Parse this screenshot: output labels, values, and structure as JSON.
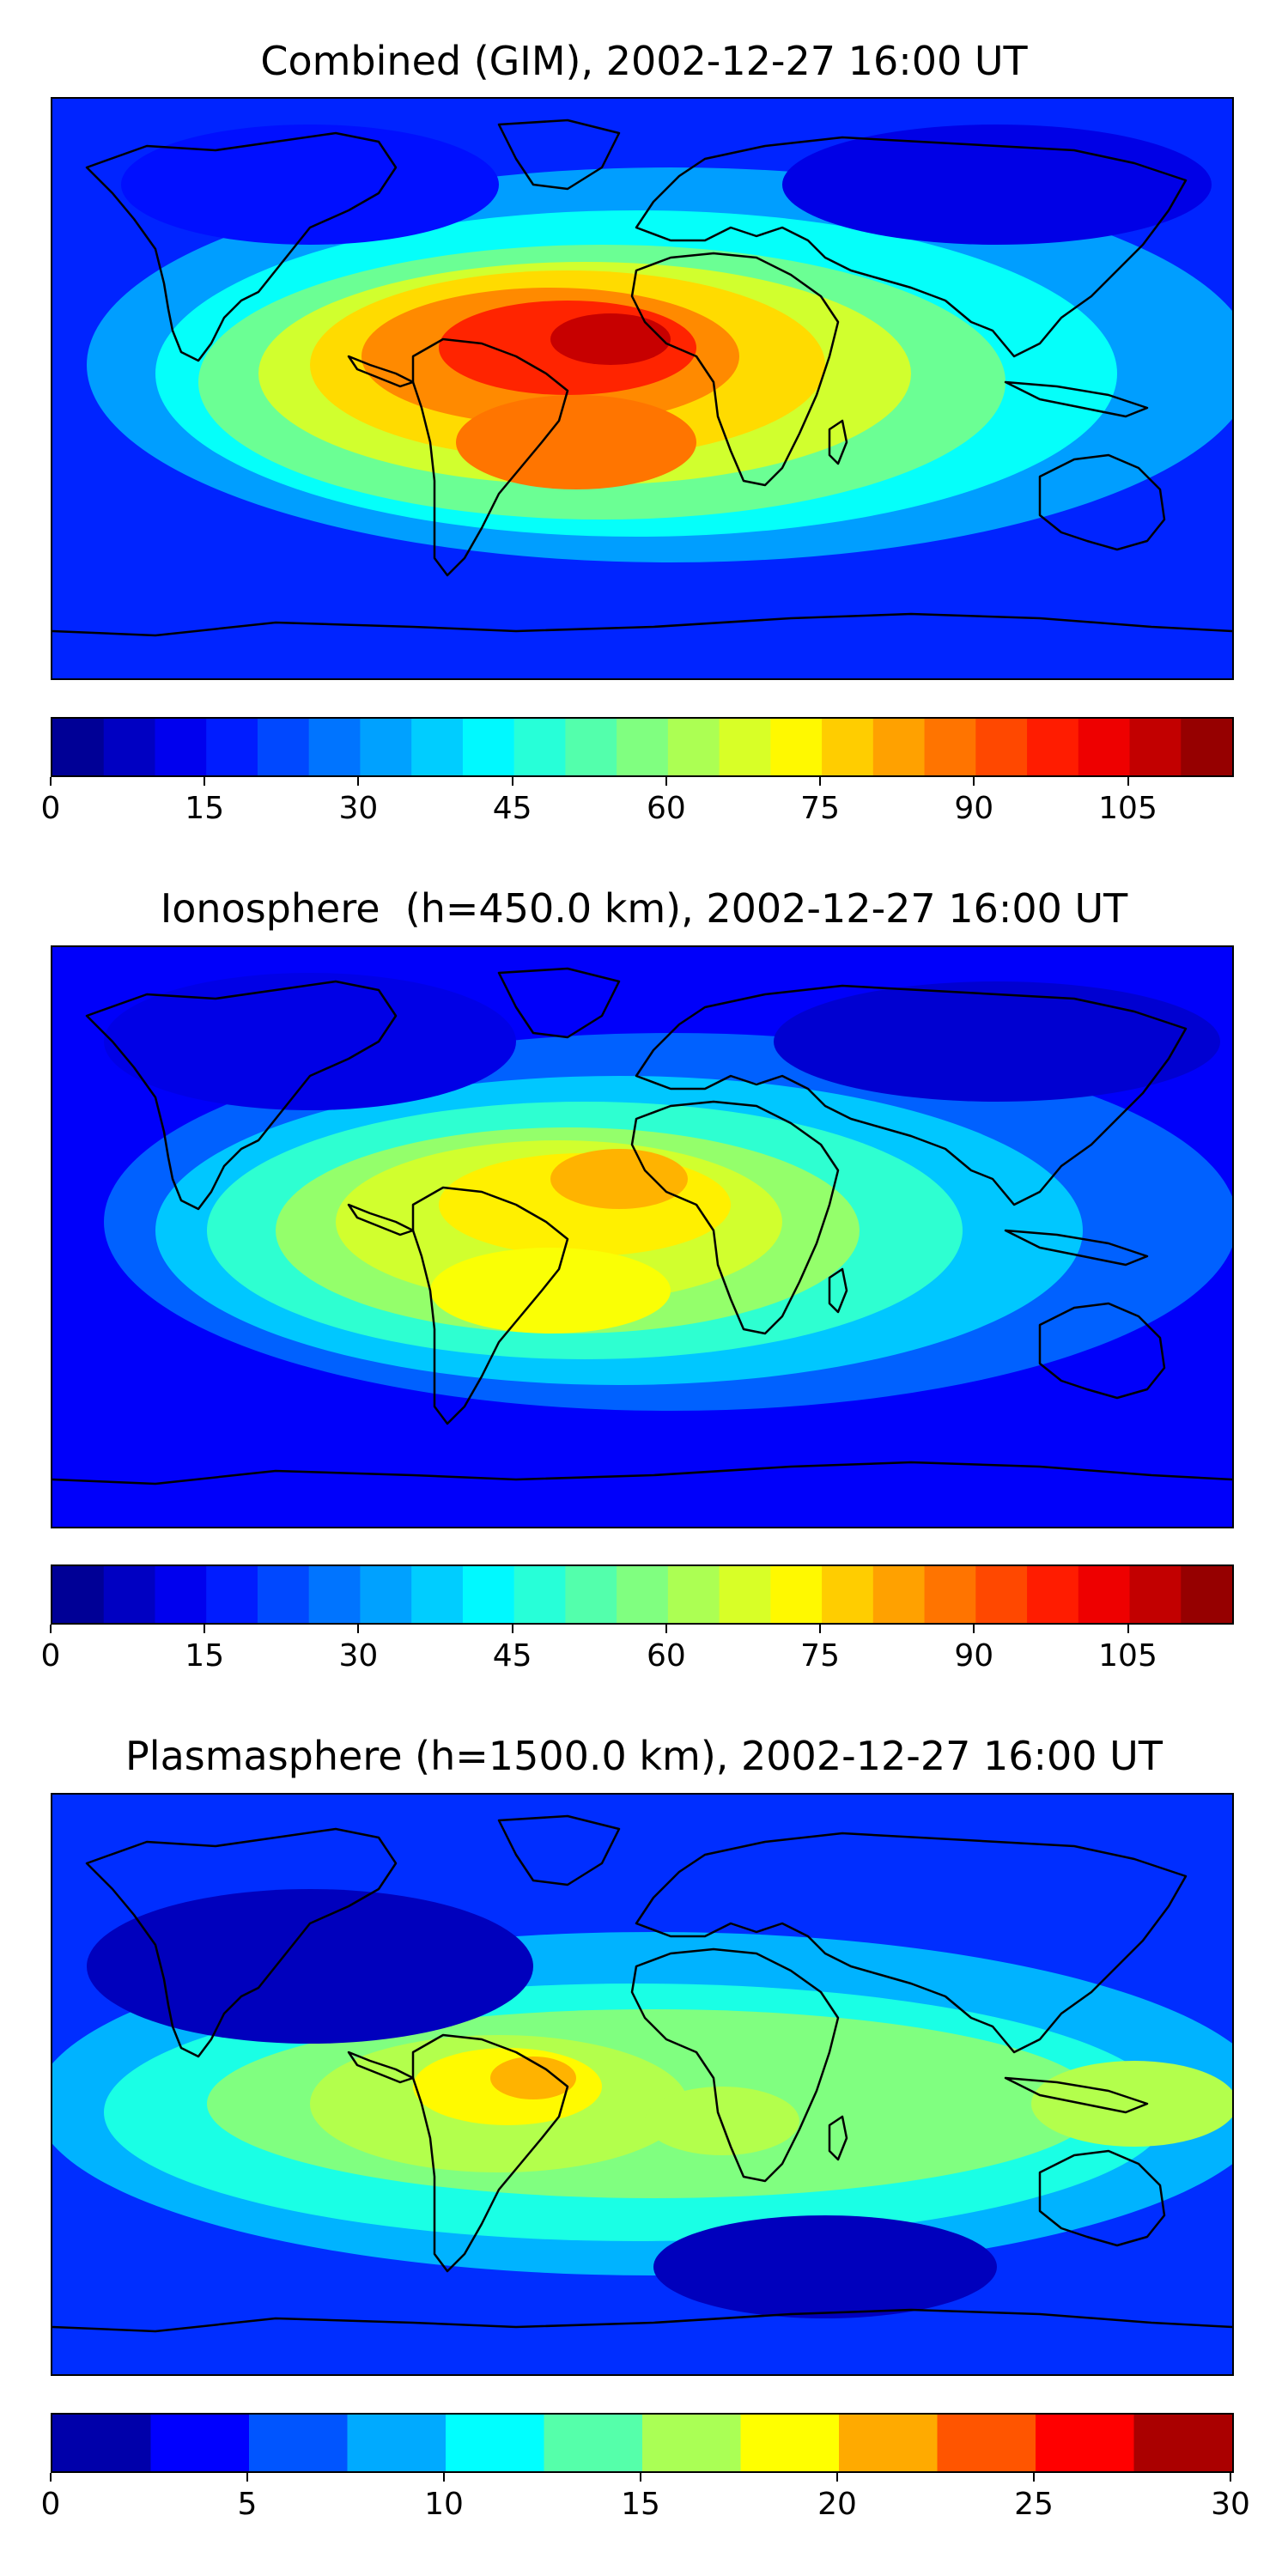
{
  "chart_data": [
    {
      "type": "heatmap",
      "title": "Combined (GIM), 2002-12-27 16:00 UT",
      "colorbar": {
        "levels": [
          0,
          5,
          10,
          15,
          20,
          25,
          30,
          35,
          40,
          45,
          50,
          55,
          60,
          65,
          70,
          75,
          80,
          85,
          90,
          95,
          100,
          105,
          110,
          115
        ],
        "tick_values": [
          0,
          15,
          30,
          45,
          60,
          75,
          90,
          105
        ],
        "tick_labels": [
          "0",
          "15",
          "30",
          "45",
          "60",
          "75",
          "90",
          "105"
        ],
        "range": [
          0,
          115
        ]
      },
      "features": [
        {
          "region": "tropical Atlantic near West Africa",
          "approx_value": 100
        },
        {
          "region": "central South America / South Atlantic",
          "approx_value": 85
        },
        {
          "region": "Pacific / Asian high latitudes",
          "approx_value": 15
        }
      ]
    },
    {
      "type": "heatmap",
      "title": "Ionosphere  (h=450.0 km), 2002-12-27 16:00 UT",
      "colorbar": {
        "levels": [
          0,
          5,
          10,
          15,
          20,
          25,
          30,
          35,
          40,
          45,
          50,
          55,
          60,
          65,
          70,
          75,
          80,
          85,
          90,
          95,
          100,
          105,
          110,
          115
        ],
        "tick_values": [
          0,
          15,
          30,
          45,
          60,
          75,
          90,
          105
        ],
        "tick_labels": [
          "0",
          "15",
          "30",
          "45",
          "60",
          "75",
          "90",
          "105"
        ],
        "range": [
          0,
          115
        ]
      },
      "features": [
        {
          "region": "West Africa / tropical Atlantic",
          "approx_value": 75
        },
        {
          "region": "South America / South Atlantic",
          "approx_value": 65
        },
        {
          "region": "Pacific / Asian high latitudes",
          "approx_value": 10
        }
      ]
    },
    {
      "type": "heatmap",
      "title": "Plasmasphere (h=1500.0 km), 2002-12-27 16:00 UT",
      "colorbar": {
        "levels": [
          0,
          2.5,
          5,
          7.5,
          10,
          12.5,
          15,
          17.5,
          20,
          22.5,
          25,
          27.5,
          30
        ],
        "tick_values": [
          0,
          5,
          10,
          15,
          20,
          25,
          30
        ],
        "tick_labels": [
          "0",
          "5",
          "10",
          "15",
          "20",
          "25",
          "30"
        ],
        "range": [
          0,
          30
        ]
      },
      "features": [
        {
          "region": "northern South America",
          "approx_value": 20
        },
        {
          "region": "equatorial band",
          "approx_value": 15
        },
        {
          "region": "North America / North Pacific / Southern Ocean",
          "approx_value": 3
        }
      ]
    }
  ]
}
